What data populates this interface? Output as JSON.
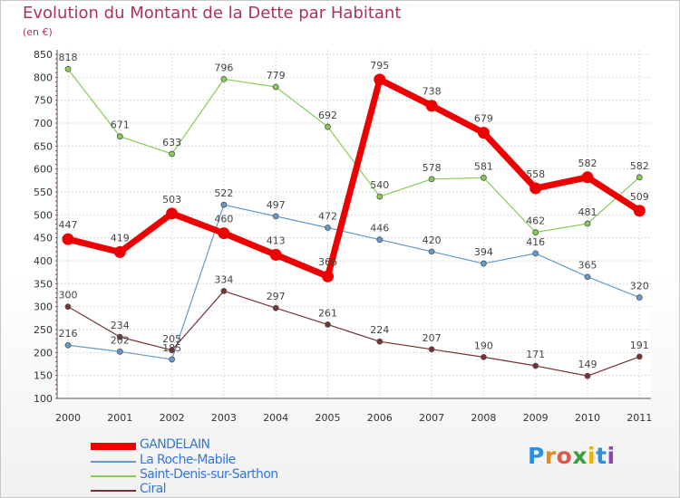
{
  "title": "Evolution du Montant de la Dette par Habitant",
  "unit": "(en €)",
  "logo": {
    "text": "Proxiti",
    "letter_colors": [
      "#2f8fdf",
      "#e58a1c",
      "#e2574c",
      "#3a9e3a",
      "#f0b000",
      "#2f8fdf",
      "#8e44ad"
    ]
  },
  "chart_data": {
    "type": "line",
    "title": "Evolution du Montant de la Dette par Habitant",
    "ylabel": "(en €)",
    "xlabel": "",
    "ylim": [
      100,
      850
    ],
    "yticks": [
      100,
      150,
      200,
      250,
      300,
      350,
      400,
      450,
      500,
      550,
      600,
      650,
      700,
      750,
      800,
      850
    ],
    "categories": [
      "2000",
      "2001",
      "2002",
      "2003",
      "2004",
      "2005",
      "2006",
      "2007",
      "2008",
      "2009",
      "2010",
      "2011"
    ],
    "grid": true,
    "legend_position": "bottom-left",
    "series": [
      {
        "name": "GANDELAIN",
        "color": "#ee0000",
        "values": [
          447,
          419,
          503,
          460,
          413,
          366,
          795,
          738,
          679,
          558,
          582,
          509
        ]
      },
      {
        "name": "La Roche-Mabile",
        "color": "#6699cc",
        "values": [
          216,
          202,
          185,
          522,
          497,
          472,
          446,
          420,
          394,
          416,
          365,
          320
        ]
      },
      {
        "name": "Saint-Denis-sur-Sarthon",
        "color": "#88cc55",
        "values": [
          818,
          671,
          633,
          796,
          779,
          692,
          540,
          578,
          581,
          462,
          481,
          582
        ]
      },
      {
        "name": "Ciral",
        "color": "#773333",
        "values": [
          300,
          234,
          205,
          334,
          297,
          261,
          224,
          207,
          190,
          171,
          149,
          191
        ]
      }
    ]
  }
}
